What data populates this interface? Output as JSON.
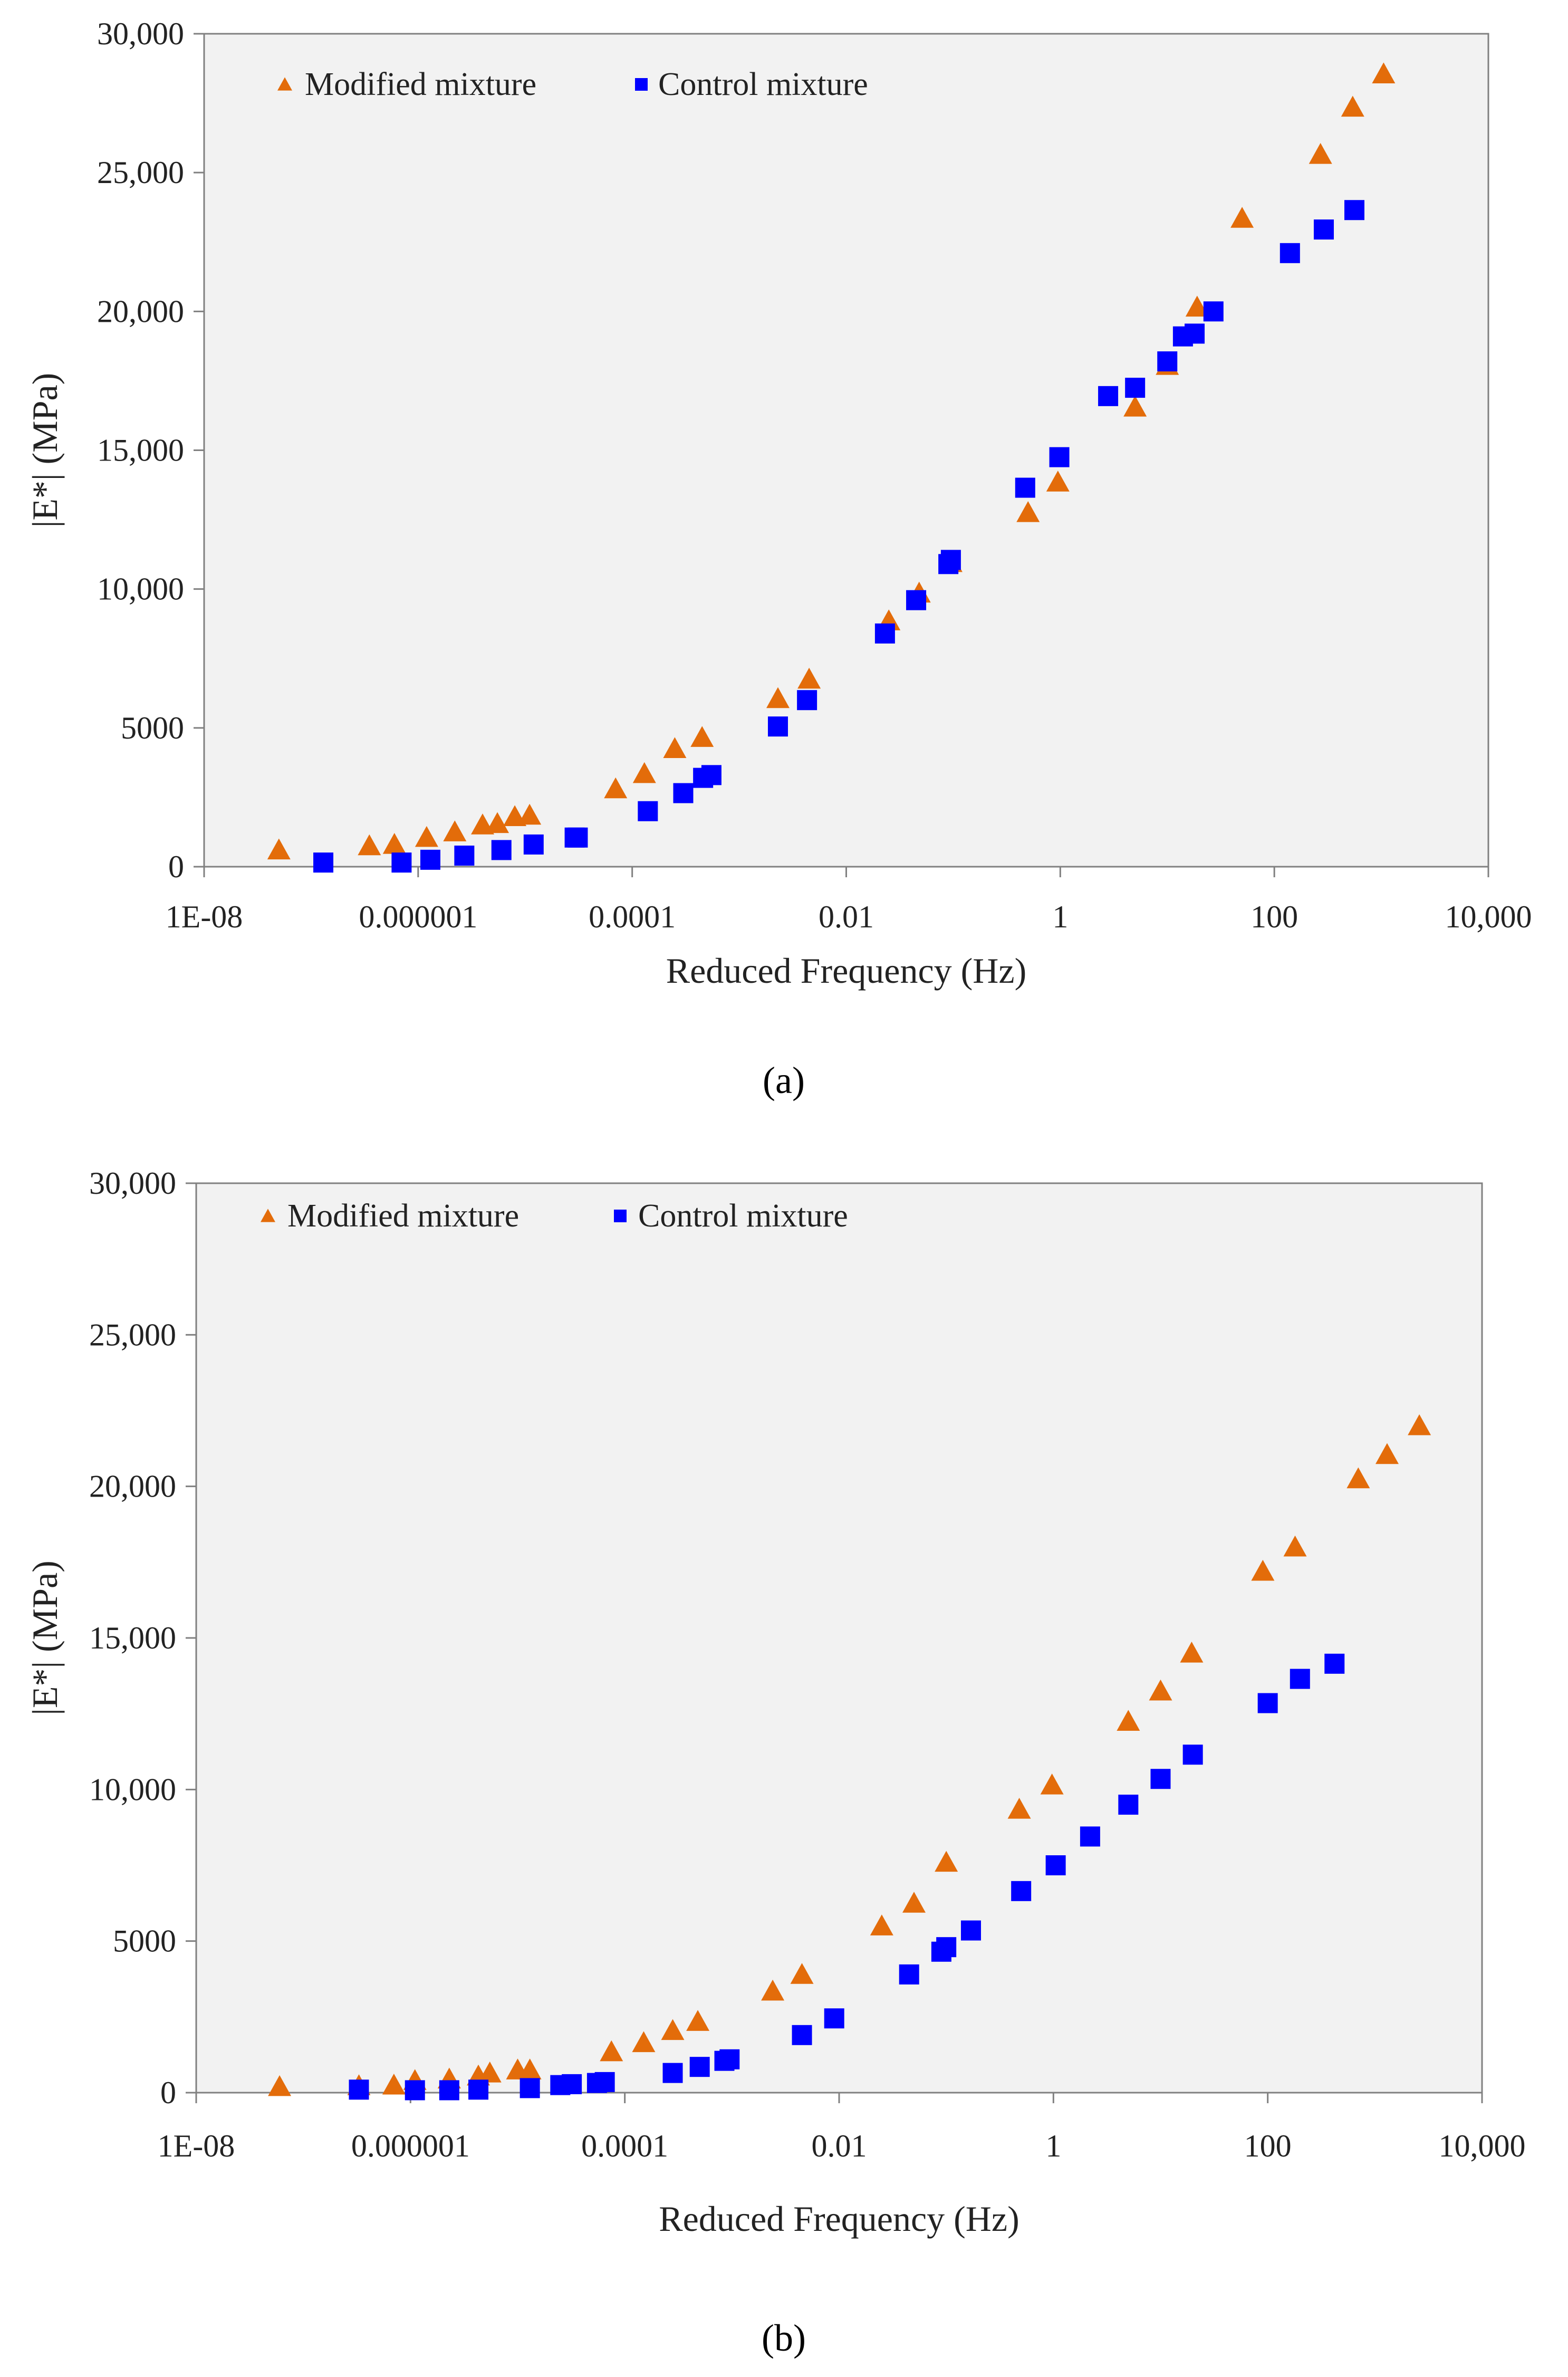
{
  "figure": {
    "panel_labels": [
      "(a)",
      "(b)"
    ]
  },
  "chart_data": [
    {
      "type": "scatter",
      "panel": "a",
      "xlabel": "Reduced Frequency (Hz)",
      "ylabel": "|E*| (MPa)",
      "xscale": "log",
      "xlim": [
        1e-08,
        10000
      ],
      "ylim": [
        0,
        30000
      ],
      "xticks": [
        1e-08,
        1e-06,
        0.0001,
        0.01,
        1,
        100,
        10000
      ],
      "xtick_labels": [
        "1E-08",
        "0.000001",
        "0.0001",
        "0.01",
        "1",
        "100",
        "10,000"
      ],
      "yticks": [
        0,
        5000,
        10000,
        15000,
        20000,
        25000,
        30000
      ],
      "ytick_labels": [
        "0",
        "5000",
        "10,000",
        "15,000",
        "20,000",
        "25,000",
        "30,000"
      ],
      "legend_position": "top-left",
      "series": [
        {
          "name": "Modified mixture",
          "marker": "triangle",
          "color": "#E36C0A",
          "points": [
            [
              5e-08,
              550
            ],
            [
              3.5e-07,
              700
            ],
            [
              6e-07,
              750
            ],
            [
              1.2e-06,
              1000
            ],
            [
              2.2e-06,
              1200
            ],
            [
              4e-06,
              1450
            ],
            [
              5.5e-06,
              1500
            ],
            [
              8e-06,
              1750
            ],
            [
              1.1e-05,
              1800
            ],
            [
              7e-05,
              2750
            ],
            [
              0.00013,
              3300
            ],
            [
              0.00025,
              4200
            ],
            [
              0.00045,
              4600
            ],
            [
              0.0023,
              6000
            ],
            [
              0.0045,
              6700
            ],
            [
              0.025,
              8800
            ],
            [
              0.048,
              9800
            ],
            [
              0.095,
              10900
            ],
            [
              0.5,
              12700
            ],
            [
              0.95,
              13800
            ],
            [
              5.0,
              16500
            ],
            [
              10.0,
              18000
            ],
            [
              19.0,
              20100
            ],
            [
              50.0,
              23300
            ],
            [
              270.0,
              25600
            ],
            [
              540.0,
              27300
            ],
            [
              1050.0,
              28500
            ]
          ]
        },
        {
          "name": "Control mixture",
          "marker": "square",
          "color": "#0000FF",
          "points": [
            [
              1.3e-07,
              150
            ],
            [
              7e-07,
              150
            ],
            [
              1.3e-06,
              250
            ],
            [
              2.7e-06,
              400
            ],
            [
              6e-06,
              600
            ],
            [
              1.2e-05,
              800
            ],
            [
              2.9e-05,
              1050
            ],
            [
              3.1e-05,
              1050
            ],
            [
              0.00014,
              2000
            ],
            [
              0.0003,
              2650
            ],
            [
              0.00046,
              3200
            ],
            [
              0.00055,
              3300
            ],
            [
              0.0023,
              5050
            ],
            [
              0.0043,
              6000
            ],
            [
              0.023,
              8400
            ],
            [
              0.045,
              9600
            ],
            [
              0.09,
              10900
            ],
            [
              0.095,
              11050
            ],
            [
              0.47,
              13650
            ],
            [
              0.98,
              14750
            ],
            [
              2.8,
              16950
            ],
            [
              5.0,
              17250
            ],
            [
              10.0,
              18200
            ],
            [
              14.0,
              19100
            ],
            [
              18.0,
              19200
            ],
            [
              27.0,
              20000
            ],
            [
              140.0,
              22100
            ],
            [
              290.0,
              22950
            ],
            [
              560.0,
              23650
            ]
          ]
        }
      ]
    },
    {
      "type": "scatter",
      "panel": "b",
      "xlabel": "Reduced Frequency (Hz)",
      "ylabel": "|E*| (MPa)",
      "xscale": "log",
      "xlim": [
        1e-08,
        10000
      ],
      "ylim": [
        0,
        30000
      ],
      "xticks": [
        1e-08,
        1e-06,
        0.0001,
        0.01,
        1,
        100,
        10000
      ],
      "xtick_labels": [
        "1E-08",
        "0.000001",
        "0.0001",
        "0.01",
        "1",
        "100",
        "10,000"
      ],
      "yticks": [
        0,
        5000,
        10000,
        15000,
        20000,
        25000,
        30000
      ],
      "ytick_labels": [
        "0",
        "5000",
        "10,000",
        "15,000",
        "20,000",
        "25,000",
        "30,000"
      ],
      "legend_position": "top-left",
      "series": [
        {
          "name": "Modified mixture",
          "marker": "triangle",
          "color": "#E36C0A",
          "points": [
            [
              6e-08,
              150
            ],
            [
              3.3e-07,
              180
            ],
            [
              7e-07,
              200
            ],
            [
              1.1e-06,
              350
            ],
            [
              2.3e-06,
              400
            ],
            [
              4.3e-06,
              500
            ],
            [
              5.5e-06,
              600
            ],
            [
              1e-05,
              700
            ],
            [
              1.3e-05,
              700
            ],
            [
              7.5e-05,
              1300
            ],
            [
              0.00015,
              1600
            ],
            [
              0.00028,
              2000
            ],
            [
              0.00048,
              2300
            ],
            [
              0.0024,
              3300
            ],
            [
              0.0045,
              3850
            ],
            [
              0.025,
              5450
            ],
            [
              0.05,
              6200
            ],
            [
              0.1,
              7550
            ],
            [
              0.48,
              9300
            ],
            [
              0.97,
              10100
            ],
            [
              5.0,
              12200
            ],
            [
              10.0,
              13200
            ],
            [
              19.5,
              14450
            ],
            [
              90.0,
              17150
            ],
            [
              180.0,
              17950
            ],
            [
              700.0,
              20200
            ],
            [
              1300.0,
              21000
            ],
            [
              2600.0,
              21950
            ]
          ]
        },
        {
          "name": "Control mixture",
          "marker": "square",
          "color": "#0000FF",
          "points": [
            [
              3.3e-07,
              100
            ],
            [
              1.1e-06,
              80
            ],
            [
              2.3e-06,
              80
            ],
            [
              4.3e-06,
              100
            ],
            [
              1.3e-05,
              150
            ],
            [
              2.5e-05,
              250
            ],
            [
              3.2e-05,
              280
            ],
            [
              5.5e-05,
              320
            ],
            [
              6.5e-05,
              350
            ],
            [
              0.00028,
              650
            ],
            [
              0.0005,
              850
            ],
            [
              0.00085,
              1050
            ],
            [
              0.00095,
              1100
            ],
            [
              0.0045,
              1900
            ],
            [
              0.009,
              2450
            ],
            [
              0.045,
              3900
            ],
            [
              0.09,
              4650
            ],
            [
              0.1,
              4800
            ],
            [
              0.17,
              5350
            ],
            [
              0.5,
              6650
            ],
            [
              1.05,
              7500
            ],
            [
              2.2,
              8450
            ],
            [
              5.0,
              9500
            ],
            [
              10.0,
              10350
            ],
            [
              20.0,
              11150
            ],
            [
              100.0,
              12850
            ],
            [
              200.0,
              13650
            ],
            [
              420.0,
              14150
            ]
          ]
        }
      ]
    }
  ]
}
